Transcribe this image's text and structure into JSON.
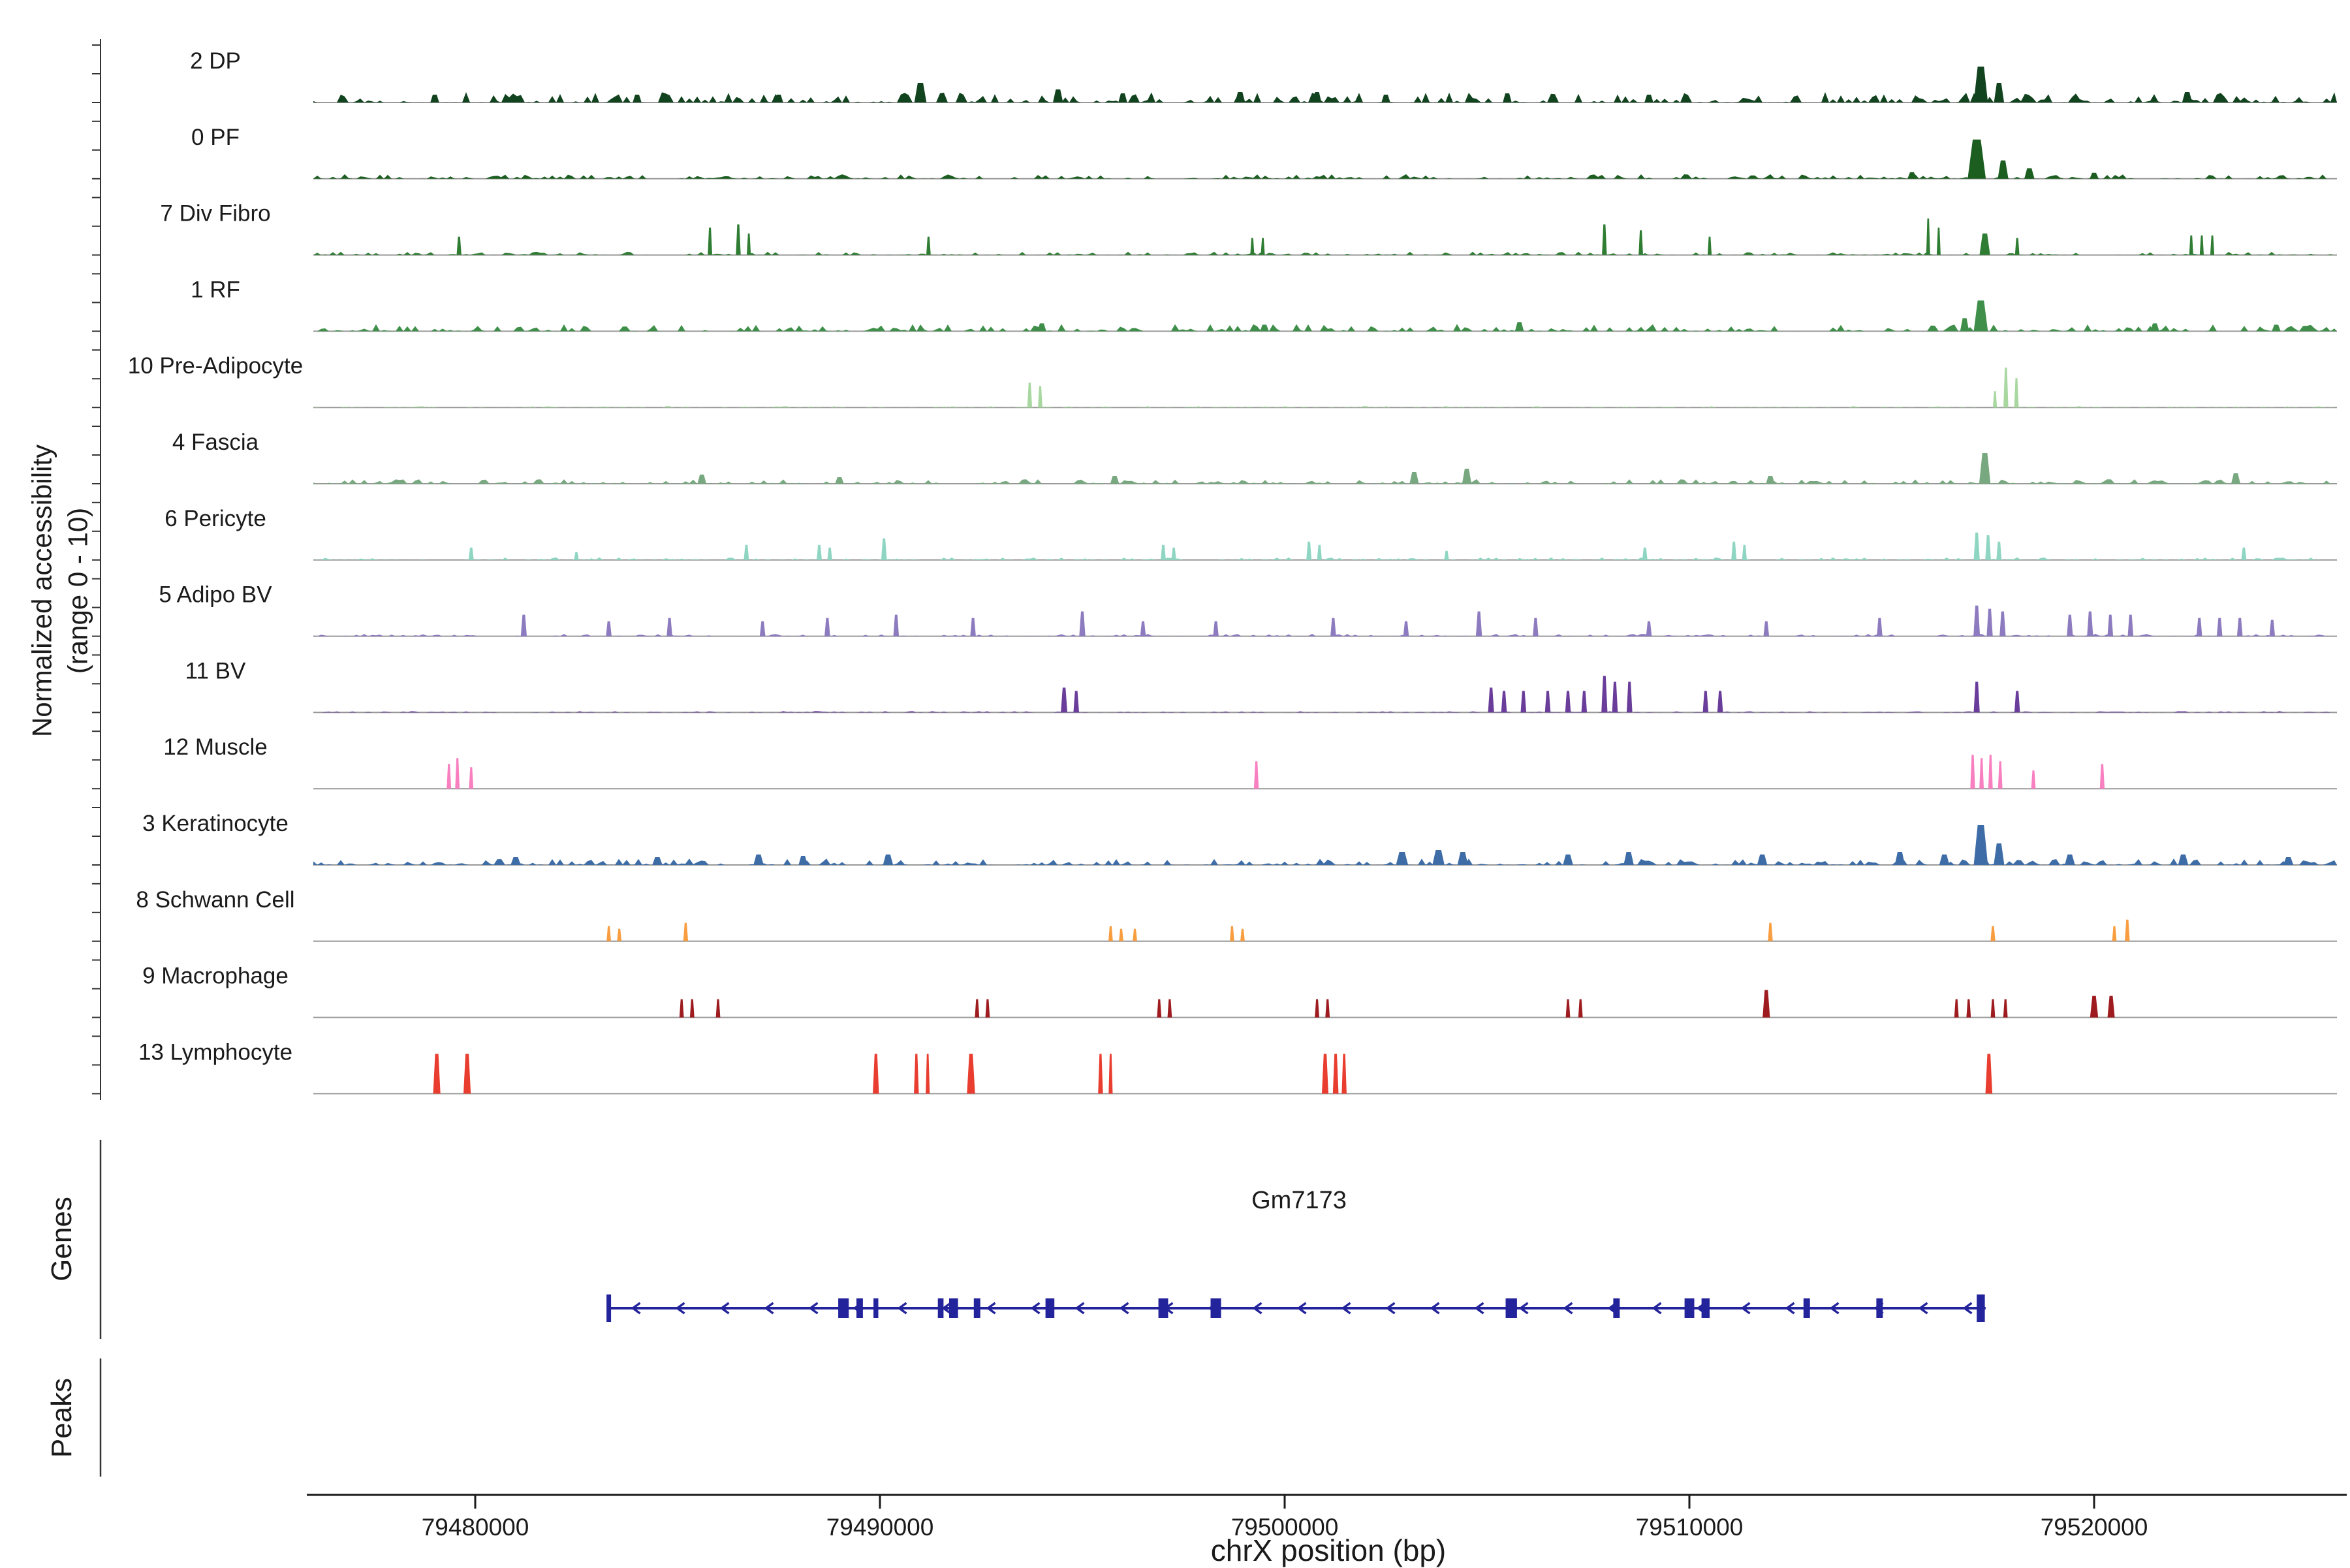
{
  "figure": {
    "y_axis_label_line1": "Normalized accessibility",
    "y_axis_label_line2": "(range 0 - 10)",
    "genes_label": "Genes",
    "peaks_label": "Peaks",
    "x_axis_title": "chrX position (bp)",
    "gene_name": "Gm7173"
  },
  "style": {
    "baseline_color": "#999999",
    "axis_color": "#1a1a1a",
    "bracket_color": "#333333",
    "text_color": "#1a1a1a"
  },
  "chart_data": {
    "type": "area",
    "title": "",
    "chrom": "chrX",
    "xlabel": "chrX position (bp)",
    "ylabel": "Normalized accessibility (range 0 - 10)",
    "x_domain_bp": [
      79476000,
      79526000
    ],
    "y_range_per_track": [
      0,
      10
    ],
    "x_ticks": [
      {
        "bp": 79480000,
        "label": "79480000"
      },
      {
        "bp": 79490000,
        "label": "79490000"
      },
      {
        "bp": 79500000,
        "label": "79500000"
      },
      {
        "bp": 79510000,
        "label": "79510000"
      },
      {
        "bp": 79520000,
        "label": "79520000"
      }
    ],
    "tracks": [
      {
        "label": "2 DP",
        "color": "#12431f",
        "noise": 16,
        "peaks": [
          [
            79479000,
            12,
            220
          ],
          [
            79484000,
            12,
            220
          ],
          [
            79487500,
            12,
            220
          ],
          [
            79491000,
            30,
            300
          ],
          [
            79494400,
            20,
            250
          ],
          [
            79496000,
            14,
            220
          ],
          [
            79498900,
            16,
            250
          ],
          [
            79500800,
            16,
            220
          ],
          [
            79502500,
            12,
            220
          ],
          [
            79505500,
            14,
            220
          ],
          [
            79509000,
            12,
            220
          ],
          [
            79517200,
            55,
            350
          ],
          [
            79517650,
            30,
            250
          ],
          [
            79522300,
            16,
            250
          ]
        ]
      },
      {
        "label": "0 PF",
        "color": "#1b5e20",
        "noise": 7,
        "peaks": [
          [
            79515500,
            10,
            220
          ],
          [
            79517100,
            60,
            450
          ],
          [
            79517750,
            28,
            260
          ],
          [
            79518400,
            16,
            250
          ],
          [
            79520000,
            9,
            220
          ]
        ]
      },
      {
        "label": "7 Div Fibro",
        "color": "#2e7d32",
        "noise": 5,
        "peaks": [
          [
            79479600,
            28,
            120
          ],
          [
            79485800,
            42,
            110
          ],
          [
            79486500,
            47,
            120
          ],
          [
            79486760,
            33,
            100
          ],
          [
            79491200,
            28,
            110
          ],
          [
            79499200,
            26,
            100
          ],
          [
            79499460,
            26,
            100
          ],
          [
            79507900,
            47,
            120
          ],
          [
            79508800,
            38,
            110
          ],
          [
            79510500,
            28,
            100
          ],
          [
            79515900,
            56,
            95
          ],
          [
            79516160,
            42,
            95
          ],
          [
            79517300,
            33,
            260
          ],
          [
            79518100,
            26,
            110
          ],
          [
            79522400,
            30,
            100
          ],
          [
            79522660,
            30,
            100
          ],
          [
            79522920,
            30,
            100
          ]
        ]
      },
      {
        "label": "1 RF",
        "color": "#3f8f4a",
        "noise": 11,
        "peaks": [
          [
            79494000,
            12,
            220
          ],
          [
            79499500,
            10,
            220
          ],
          [
            79505800,
            14,
            220
          ],
          [
            79516800,
            20,
            220
          ],
          [
            79517200,
            47,
            350
          ],
          [
            79521500,
            12,
            220
          ],
          [
            79524500,
            10,
            220
          ]
        ]
      },
      {
        "label": "10 Pre-Adipocyte",
        "color": "#a8d8a0",
        "noise": 2,
        "peaks": [
          [
            79493700,
            38,
            120
          ],
          [
            79493960,
            33,
            110
          ],
          [
            79517550,
            25,
            100
          ],
          [
            79517820,
            61,
            120
          ],
          [
            79518080,
            45,
            110
          ]
        ]
      },
      {
        "label": "4 Fascia",
        "color": "#78a87f",
        "noise": 7,
        "peaks": [
          [
            79485600,
            14,
            220
          ],
          [
            79489000,
            10,
            220
          ],
          [
            79495800,
            12,
            220
          ],
          [
            79503200,
            18,
            230
          ],
          [
            79504500,
            23,
            230
          ],
          [
            79512000,
            12,
            220
          ],
          [
            79517300,
            47,
            280
          ],
          [
            79523500,
            16,
            230
          ]
        ]
      },
      {
        "label": "6 Pericyte",
        "color": "#8fd6c2",
        "noise": 4,
        "peaks": [
          [
            79479900,
            19,
            130
          ],
          [
            79482500,
            12,
            120
          ],
          [
            79486700,
            23,
            130
          ],
          [
            79488500,
            23,
            130
          ],
          [
            79488760,
            19,
            120
          ],
          [
            79490100,
            33,
            140
          ],
          [
            79497000,
            23,
            130
          ],
          [
            79497260,
            19,
            120
          ],
          [
            79500600,
            28,
            130
          ],
          [
            79500860,
            23,
            120
          ],
          [
            79504000,
            14,
            120
          ],
          [
            79508900,
            19,
            130
          ],
          [
            79511100,
            28,
            130
          ],
          [
            79511360,
            23,
            120
          ],
          [
            79517100,
            42,
            150
          ],
          [
            79517380,
            38,
            140
          ],
          [
            79517650,
            28,
            130
          ],
          [
            79523700,
            19,
            130
          ]
        ]
      },
      {
        "label": "5 Adipo BV",
        "color": "#8d7bbf",
        "noise": 4,
        "peaks": [
          [
            79481200,
            33,
            150
          ],
          [
            79483300,
            23,
            140
          ],
          [
            79484800,
            28,
            140
          ],
          [
            79487100,
            23,
            140
          ],
          [
            79488700,
            28,
            140
          ],
          [
            79490400,
            33,
            140
          ],
          [
            79492300,
            28,
            140
          ],
          [
            79495000,
            38,
            150
          ],
          [
            79496500,
            23,
            140
          ],
          [
            79498300,
            23,
            140
          ],
          [
            79501200,
            28,
            140
          ],
          [
            79503000,
            23,
            140
          ],
          [
            79504800,
            38,
            150
          ],
          [
            79506200,
            28,
            140
          ],
          [
            79509000,
            23,
            140
          ],
          [
            79511900,
            23,
            140
          ],
          [
            79514700,
            28,
            140
          ],
          [
            79517100,
            47,
            160
          ],
          [
            79517420,
            42,
            150
          ],
          [
            79517740,
            38,
            150
          ],
          [
            79519400,
            33,
            150
          ],
          [
            79519900,
            38,
            150
          ],
          [
            79520400,
            33,
            140
          ],
          [
            79520900,
            33,
            140
          ],
          [
            79522600,
            28,
            140
          ],
          [
            79523100,
            28,
            140
          ],
          [
            79523600,
            28,
            140
          ],
          [
            79524400,
            25,
            140
          ]
        ]
      },
      {
        "label": "11 BV",
        "color": "#6a3d9a",
        "noise": 2,
        "peaks": [
          [
            79494550,
            38,
            160
          ],
          [
            79494850,
            33,
            140
          ],
          [
            79505100,
            38,
            150
          ],
          [
            79505420,
            33,
            140
          ],
          [
            79505900,
            33,
            140
          ],
          [
            79506500,
            33,
            140
          ],
          [
            79507000,
            33,
            140
          ],
          [
            79507400,
            33,
            140
          ],
          [
            79507900,
            56,
            150
          ],
          [
            79508160,
            47,
            140
          ],
          [
            79508520,
            47,
            140
          ],
          [
            79510400,
            33,
            140
          ],
          [
            79510760,
            33,
            140
          ],
          [
            79517100,
            47,
            150
          ],
          [
            79518100,
            33,
            140
          ]
        ]
      },
      {
        "label": "12 Muscle",
        "color": "#f87fc0",
        "noise": 0,
        "peaks": [
          [
            79479350,
            38,
            110
          ],
          [
            79479560,
            47,
            110
          ],
          [
            79479900,
            33,
            110
          ],
          [
            79499300,
            42,
            120
          ],
          [
            79517000,
            52,
            120
          ],
          [
            79517220,
            47,
            110
          ],
          [
            79517440,
            52,
            110
          ],
          [
            79517680,
            42,
            110
          ],
          [
            79518500,
            28,
            110
          ],
          [
            79520200,
            38,
            120
          ]
        ]
      },
      {
        "label": "3 Keratinocyte",
        "color": "#3d6ca6",
        "noise": 10,
        "peaks": [
          [
            79481000,
            12,
            250
          ],
          [
            79484500,
            12,
            250
          ],
          [
            79487000,
            16,
            250
          ],
          [
            79488100,
            14,
            220
          ],
          [
            79490200,
            16,
            250
          ],
          [
            79502900,
            20,
            300
          ],
          [
            79503800,
            23,
            300
          ],
          [
            79504400,
            20,
            260
          ],
          [
            79507000,
            16,
            250
          ],
          [
            79508500,
            20,
            250
          ],
          [
            79511800,
            16,
            250
          ],
          [
            79515200,
            20,
            250
          ],
          [
            79516300,
            16,
            250
          ],
          [
            79517200,
            61,
            350
          ],
          [
            79517650,
            33,
            260
          ],
          [
            79519400,
            16,
            250
          ],
          [
            79522200,
            16,
            250
          ],
          [
            79524800,
            12,
            250
          ]
        ]
      },
      {
        "label": "8 Schwann Cell",
        "color": "#f89d40",
        "noise": 0,
        "peaks": [
          [
            79483300,
            23,
            110
          ],
          [
            79483560,
            19,
            110
          ],
          [
            79485200,
            28,
            120
          ],
          [
            79495700,
            23,
            110
          ],
          [
            79495960,
            19,
            110
          ],
          [
            79496300,
            19,
            110
          ],
          [
            79498700,
            23,
            110
          ],
          [
            79498960,
            19,
            110
          ],
          [
            79512000,
            28,
            120
          ],
          [
            79517500,
            23,
            120
          ],
          [
            79520500,
            23,
            110
          ],
          [
            79520820,
            33,
            120
          ]
        ]
      },
      {
        "label": "9 Macrophage",
        "color": "#9e1c20",
        "noise": 0,
        "peaks": [
          [
            79485100,
            28,
            110
          ],
          [
            79485360,
            28,
            110
          ],
          [
            79486000,
            28,
            110
          ],
          [
            79492400,
            28,
            110
          ],
          [
            79492660,
            28,
            110
          ],
          [
            79496900,
            28,
            110
          ],
          [
            79497160,
            28,
            110
          ],
          [
            79500800,
            28,
            110
          ],
          [
            79501060,
            28,
            110
          ],
          [
            79507000,
            28,
            110
          ],
          [
            79507310,
            28,
            110
          ],
          [
            79511900,
            42,
            180
          ],
          [
            79516600,
            28,
            110
          ],
          [
            79516900,
            28,
            110
          ],
          [
            79517500,
            28,
            110
          ],
          [
            79517810,
            28,
            110
          ],
          [
            79520000,
            33,
            200
          ],
          [
            79520420,
            33,
            180
          ]
        ]
      },
      {
        "label": "13 Lymphocyte",
        "color": "#e93d30",
        "noise": 0,
        "peaks": [
          [
            79479050,
            61,
            180
          ],
          [
            79479800,
            61,
            180
          ],
          [
            79489900,
            61,
            150
          ],
          [
            79490900,
            61,
            120
          ],
          [
            79491180,
            61,
            100
          ],
          [
            79492250,
            61,
            200
          ],
          [
            79495450,
            61,
            120
          ],
          [
            79495700,
            61,
            100
          ],
          [
            79501000,
            61,
            160
          ],
          [
            79501260,
            61,
            140
          ],
          [
            79501470,
            61,
            120
          ],
          [
            79517400,
            61,
            170
          ]
        ]
      }
    ],
    "gene": {
      "name": "Gm7173",
      "chrom": "chrX",
      "start": 79483250,
      "end": 79517320,
      "strand": "-",
      "color": "#23239c",
      "exons": [
        [
          79483300,
          100,
          1
        ],
        [
          79489100,
          260,
          0
        ],
        [
          79489500,
          160,
          0
        ],
        [
          79489900,
          120,
          0
        ],
        [
          79491500,
          140,
          0
        ],
        [
          79491820,
          220,
          0
        ],
        [
          79492400,
          160,
          0
        ],
        [
          79494200,
          220,
          0
        ],
        [
          79497000,
          240,
          0
        ],
        [
          79498300,
          260,
          0
        ],
        [
          79505600,
          280,
          0
        ],
        [
          79508200,
          160,
          0
        ],
        [
          79510000,
          240,
          0
        ],
        [
          79510400,
          200,
          0
        ],
        [
          79512900,
          160,
          0
        ],
        [
          79514700,
          160,
          0
        ],
        [
          79517200,
          200,
          1
        ]
      ]
    },
    "peaks_track": {
      "features": []
    }
  }
}
